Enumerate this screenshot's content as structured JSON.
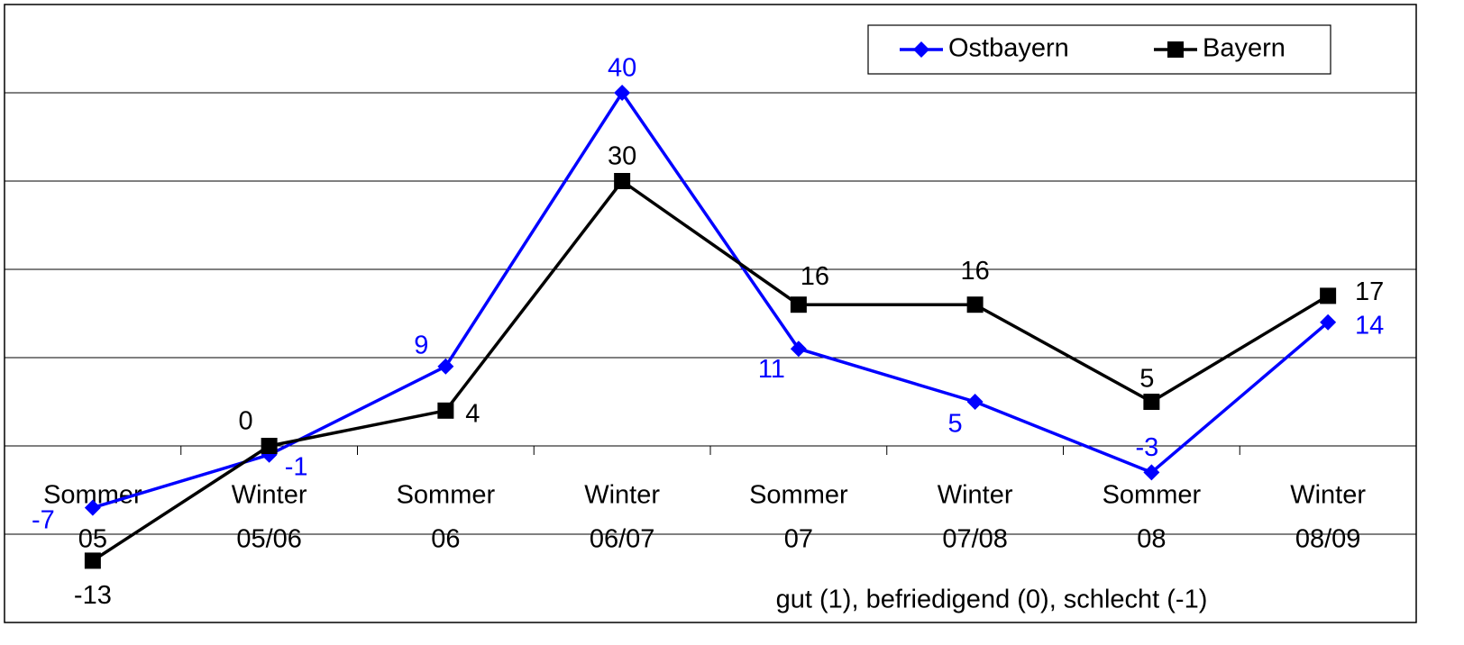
{
  "chart_data": {
    "type": "line",
    "categories": [
      [
        "Sommer",
        "05"
      ],
      [
        "Winter",
        "05/06"
      ],
      [
        "Sommer",
        "06"
      ],
      [
        "Winter",
        "06/07"
      ],
      [
        "Sommer",
        "07"
      ],
      [
        "Winter",
        "07/08"
      ],
      [
        "Sommer",
        "08"
      ],
      [
        "Winter",
        "08/09"
      ]
    ],
    "series": [
      {
        "name": "Ostbayern",
        "color": "#0000ff",
        "marker": "diamond",
        "values": [
          -7,
          -1,
          9,
          40,
          11,
          5,
          -3,
          14
        ]
      },
      {
        "name": "Bayern",
        "color": "#000000",
        "marker": "square",
        "values": [
          -13,
          0,
          4,
          30,
          16,
          16,
          5,
          17
        ]
      }
    ],
    "ylim": [
      -20,
      50
    ],
    "yticks": [
      -20,
      -10,
      0,
      10,
      20,
      30,
      40,
      50
    ],
    "grid": true,
    "legend": "top-right",
    "annotation": "gut (1), befriedigend (0), schlecht (-1)"
  }
}
